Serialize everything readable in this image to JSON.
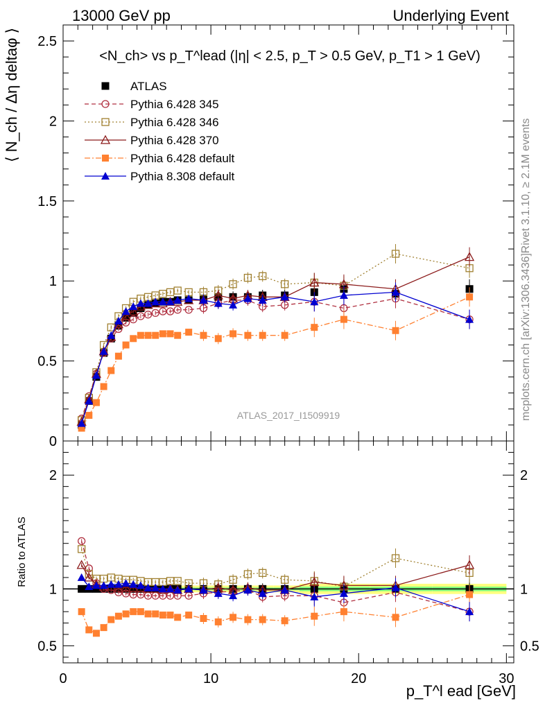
{
  "header": {
    "left": "13000 GeV pp",
    "right": "Underlying Event",
    "analysis_id": "ATLAS_2017_I1509919",
    "side_rivet": "Rivet 3.1.10, ≥ 2.1M events",
    "side_mcplots": "mcplots.cern.ch [arXiv:1306.3436]"
  },
  "chart_data": {
    "type": "scatter",
    "title": "<N_ch> vs p_T^lead (|η| < 2.5, p_T > 0.5 GeV, p_T1 > 1 GeV)",
    "ylabel": "⟨ N_ch / Δη deltaφ ⟩",
    "ratio_ylabel": "Ratio to ATLAS",
    "xlabel": "p_T^l ead [GeV]",
    "xlim": [
      0,
      30.5
    ],
    "ylim": [
      0,
      2.6
    ],
    "ratio_ylim": [
      0.35,
      2.3
    ],
    "x_ticks": [
      "0",
      "10",
      "20",
      "30"
    ],
    "y_ticks": [
      "0",
      "0.5",
      "1",
      "1.5",
      "2",
      "2.5"
    ],
    "ratio_y_ticks": [
      "0.5",
      "1",
      "2"
    ],
    "x": [
      1.25,
      1.75,
      2.25,
      2.75,
      3.25,
      3.75,
      4.25,
      4.75,
      5.25,
      5.75,
      6.25,
      6.75,
      7.25,
      7.75,
      8.5,
      9.5,
      10.5,
      11.5,
      12.5,
      13.5,
      15.0,
      17.0,
      19.0,
      22.5,
      27.5
    ],
    "series": [
      {
        "name": "ATLAS",
        "color": "#000000",
        "marker": "square-filled",
        "line": "none",
        "values": [
          0.1,
          0.25,
          0.4,
          0.55,
          0.64,
          0.72,
          0.77,
          0.8,
          0.83,
          0.85,
          0.86,
          0.87,
          0.87,
          0.88,
          0.88,
          0.89,
          0.9,
          0.9,
          0.9,
          0.91,
          0.91,
          0.93,
          0.95,
          0.92,
          0.95
        ],
        "ratio": [
          1,
          1,
          1,
          1,
          1,
          1,
          1,
          1,
          1,
          1,
          1,
          1,
          1,
          1,
          1,
          1,
          1,
          1,
          1,
          1,
          1,
          1,
          1,
          1,
          1
        ]
      },
      {
        "name": "Pythia 6.428 345",
        "color": "#b03040",
        "marker": "circle-open",
        "line": "dashed",
        "values": [
          0.14,
          0.28,
          0.42,
          0.55,
          0.64,
          0.7,
          0.74,
          0.76,
          0.78,
          0.79,
          0.8,
          0.81,
          0.81,
          0.82,
          0.82,
          0.83,
          0.86,
          0.88,
          0.88,
          0.84,
          0.85,
          0.87,
          0.83,
          0.89,
          0.76
        ],
        "ratio": [
          1.42,
          1.18,
          1.05,
          1.0,
          0.99,
          0.97,
          0.96,
          0.95,
          0.95,
          0.94,
          0.94,
          0.94,
          0.94,
          0.94,
          0.94,
          0.96,
          0.97,
          0.98,
          0.99,
          0.93,
          0.94,
          0.94,
          0.88,
          0.97,
          0.8
        ]
      },
      {
        "name": "Pythia 6.428 346",
        "color": "#a08030",
        "marker": "square-open",
        "line": "dotted",
        "values": [
          0.13,
          0.27,
          0.43,
          0.6,
          0.71,
          0.78,
          0.83,
          0.87,
          0.89,
          0.9,
          0.91,
          0.92,
          0.93,
          0.94,
          0.93,
          0.93,
          0.94,
          0.98,
          1.02,
          1.03,
          0.98,
          0.99,
          0.97,
          1.17,
          1.08
        ],
        "ratio": [
          1.35,
          1.13,
          1.09,
          1.09,
          1.1,
          1.09,
          1.08,
          1.08,
          1.07,
          1.06,
          1.06,
          1.06,
          1.07,
          1.07,
          1.05,
          1.05,
          1.04,
          1.08,
          1.13,
          1.14,
          1.08,
          1.07,
          1.02,
          1.27,
          1.14
        ]
      },
      {
        "name": "Pythia 6.428 370",
        "color": "#8b1a1a",
        "marker": "triangle-open",
        "line": "solid",
        "values": [
          0.12,
          0.26,
          0.42,
          0.56,
          0.65,
          0.73,
          0.78,
          0.81,
          0.84,
          0.85,
          0.86,
          0.86,
          0.87,
          0.87,
          0.88,
          0.88,
          0.91,
          0.89,
          0.91,
          0.9,
          0.9,
          0.99,
          0.98,
          0.95,
          1.15
        ],
        "ratio": [
          1.21,
          1.1,
          1.04,
          1.02,
          1.02,
          1.01,
          1.01,
          1.01,
          1.01,
          1.0,
          1.0,
          0.99,
          1.0,
          0.99,
          1.0,
          0.99,
          1.01,
          0.99,
          1.01,
          0.99,
          0.99,
          1.06,
          1.03,
          1.03,
          1.21
        ]
      },
      {
        "name": "Pythia 6.428 default",
        "color": "#ff8030",
        "marker": "square-filled",
        "line": "dashdot",
        "values": [
          0.08,
          0.16,
          0.24,
          0.34,
          0.44,
          0.53,
          0.6,
          0.64,
          0.66,
          0.66,
          0.66,
          0.67,
          0.67,
          0.66,
          0.68,
          0.66,
          0.64,
          0.67,
          0.66,
          0.66,
          0.66,
          0.71,
          0.76,
          0.69,
          0.9
        ],
        "ratio": [
          0.8,
          0.64,
          0.61,
          0.66,
          0.73,
          0.76,
          0.78,
          0.8,
          0.8,
          0.78,
          0.78,
          0.77,
          0.77,
          0.75,
          0.77,
          0.74,
          0.71,
          0.75,
          0.73,
          0.73,
          0.72,
          0.76,
          0.8,
          0.75,
          0.95
        ]
      },
      {
        "name": "Pythia 8.308 default",
        "color": "#0000d0",
        "marker": "triangle-filled",
        "line": "solid",
        "values": [
          0.11,
          0.25,
          0.41,
          0.56,
          0.66,
          0.75,
          0.81,
          0.84,
          0.86,
          0.86,
          0.87,
          0.87,
          0.87,
          0.88,
          0.89,
          0.88,
          0.86,
          0.85,
          0.89,
          0.88,
          0.9,
          0.87,
          0.91,
          0.93,
          0.76
        ],
        "ratio": [
          1.1,
          1.02,
          1.03,
          1.03,
          1.04,
          1.04,
          1.05,
          1.04,
          1.03,
          1.01,
          1.01,
          1.0,
          1.0,
          0.99,
          1.0,
          0.99,
          0.96,
          0.94,
          0.99,
          0.96,
          0.99,
          0.93,
          0.96,
          1.01,
          0.8
        ]
      }
    ],
    "legend": {
      "placement": "top-left",
      "entries": [
        "ATLAS",
        "Pythia 6.428 345",
        "Pythia 6.428 346",
        "Pythia 6.428 370",
        "Pythia 6.428 default",
        "Pythia 8.308 default"
      ]
    }
  }
}
